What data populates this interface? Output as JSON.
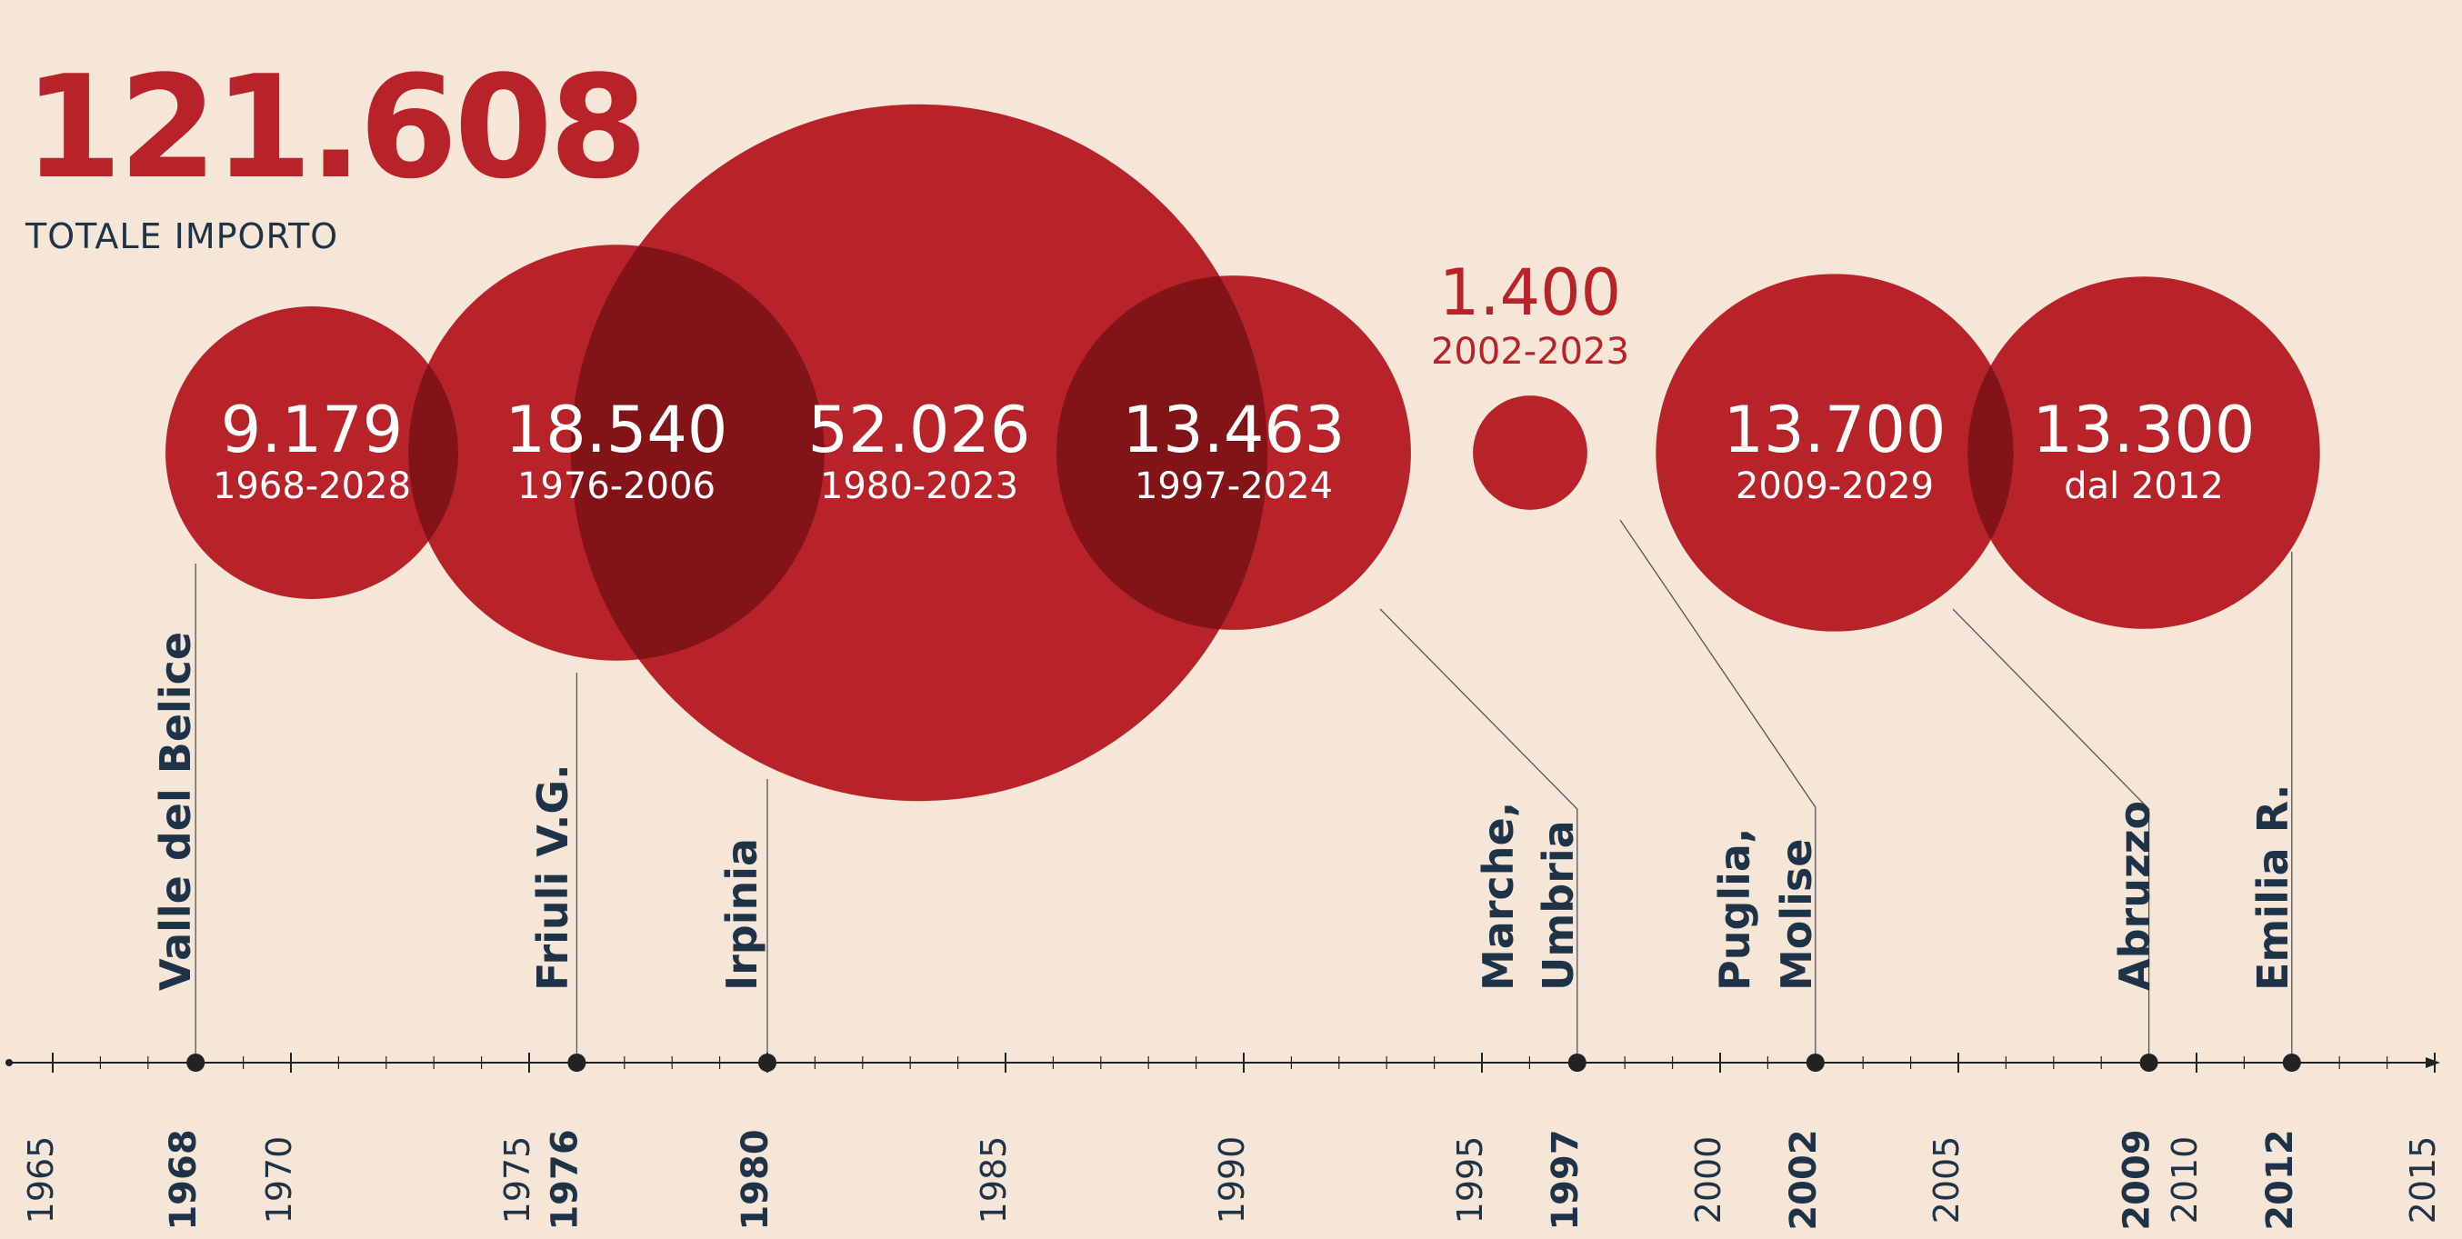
{
  "header": {
    "total_value": "121.608",
    "total_label": "TOTALE IMPORTO"
  },
  "colors": {
    "background": "#f5e6d7",
    "bubble": "#b8232a",
    "bubble_overlap": "#821418",
    "text_dark": "#1f3348",
    "axis": "#222222"
  },
  "chart_data": {
    "type": "bubble-timeline",
    "title": "",
    "xlabel": "",
    "ylabel": "",
    "xlim": [
      1964,
      2016
    ],
    "size_encodes": "importo",
    "x_tick_labels": [
      "1965",
      "1970",
      "1975",
      "1985",
      "1990",
      "1995",
      "2000",
      "2005",
      "2010",
      "2015"
    ],
    "events": [
      {
        "region": [
          "Valle del Belice"
        ],
        "year": 1968,
        "year_label": "1968",
        "value": 9179,
        "value_label": "9.179",
        "period": "1968-2028"
      },
      {
        "region": [
          "Friuli V.G."
        ],
        "year": 1976,
        "year_label": "1976",
        "value": 18540,
        "value_label": "18.540",
        "period": "1976-2006"
      },
      {
        "region": [
          "Irpinia"
        ],
        "year": 1980,
        "year_label": "1980",
        "value": 52026,
        "value_label": "52.026",
        "period": "1980-2023"
      },
      {
        "region": [
          "Marche,",
          "Umbria"
        ],
        "year": 1997,
        "year_label": "1997",
        "value": 13463,
        "value_label": "13.463",
        "period": "1997-2024"
      },
      {
        "region": [
          "Puglia,",
          "Molise"
        ],
        "year": 2002,
        "year_label": "2002",
        "value": 1400,
        "value_label": "1.400",
        "period": "2002-2023"
      },
      {
        "region": [
          "Abruzzo"
        ],
        "year": 2009,
        "year_label": "2009",
        "value": 13700,
        "value_label": "13.700",
        "period": "2009-2029"
      },
      {
        "region": [
          "Emilia R."
        ],
        "year": 2012,
        "year_label": "2012",
        "value": 13300,
        "value_label": "13.300",
        "period": "dal 2012"
      }
    ]
  }
}
